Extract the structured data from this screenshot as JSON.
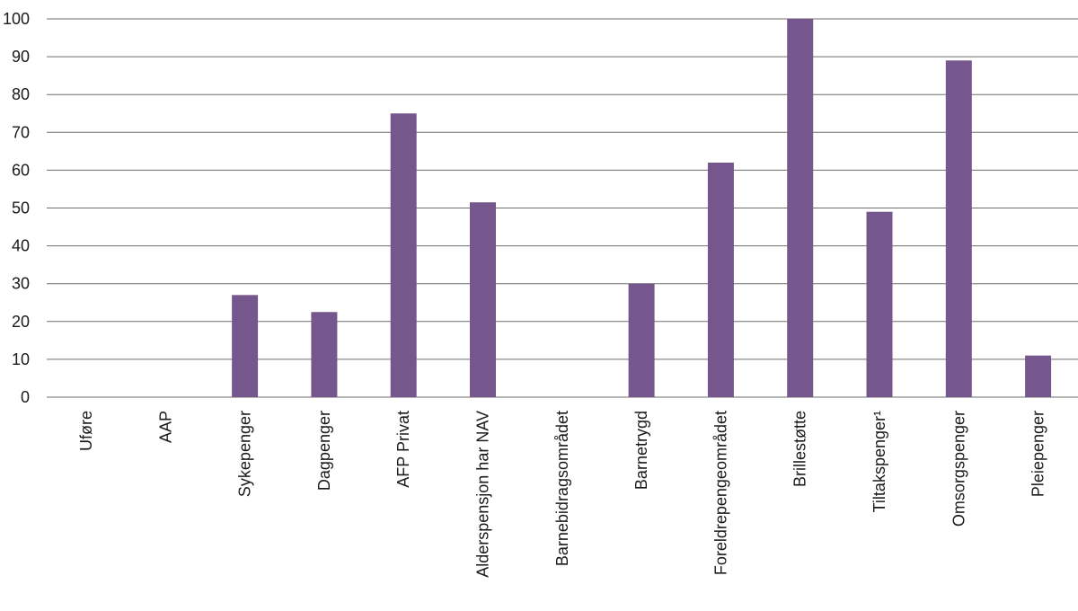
{
  "chart_data": {
    "type": "bar",
    "categories": [
      "Uføre",
      "AAP",
      "Sykepenger",
      "Dagpenger",
      "AFP Privat",
      "Alderspensjon har NAV",
      "Barnebidragsområdet",
      "Barnetrygd",
      "Foreldrepengeområdet",
      "Brillestøtte",
      "Tiltakspenger¹",
      "Omsorgspenger",
      "Pleiepenger"
    ],
    "values": [
      0,
      0,
      27,
      22.5,
      75,
      51.5,
      0,
      30,
      62,
      100,
      49,
      89,
      11
    ],
    "yticks": [
      0,
      10,
      20,
      30,
      40,
      50,
      60,
      70,
      80,
      90,
      100
    ],
    "ylim": [
      0,
      100
    ],
    "grid": true,
    "bar_color": "#76578d"
  }
}
